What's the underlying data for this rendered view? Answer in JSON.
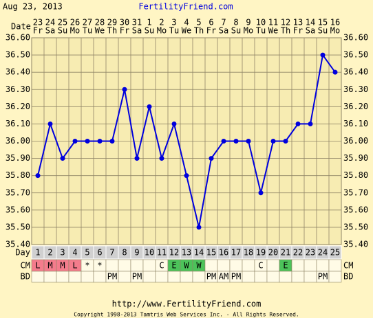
{
  "header": {
    "date": "Aug 23, 2013",
    "site": "FertilityFriend.com"
  },
  "chart_data": {
    "type": "line",
    "x_label": "Date",
    "day_label": "Day",
    "dates": [
      23,
      24,
      25,
      26,
      27,
      28,
      29,
      30,
      31,
      1,
      2,
      3,
      4,
      5,
      6,
      7,
      8,
      9,
      10,
      11,
      12,
      13,
      14,
      15,
      16
    ],
    "weekdays": [
      "Fr",
      "Sa",
      "Su",
      "Mo",
      "Tu",
      "We",
      "Th",
      "Fr",
      "Sa",
      "Su",
      "Mo",
      "Tu",
      "We",
      "Th",
      "Fr",
      "Sa",
      "Su",
      "Mo",
      "Tu",
      "We",
      "Th",
      "Fr",
      "Sa",
      "Su",
      "Mo"
    ],
    "x": [
      1,
      2,
      3,
      4,
      5,
      6,
      7,
      8,
      9,
      10,
      11,
      12,
      13,
      14,
      15,
      16,
      17,
      18,
      19,
      20,
      21,
      22,
      23,
      24,
      25
    ],
    "xlim": [
      0.5,
      25.5
    ],
    "series": [
      {
        "color": "#0000dd",
        "values": [
          35.8,
          36.1,
          35.9,
          36.0,
          36.0,
          36.0,
          36.0,
          36.3,
          35.9,
          36.2,
          35.9,
          36.1,
          35.8,
          35.5,
          35.9,
          36.0,
          36.0,
          36.0,
          35.7,
          36.0,
          36.0,
          36.1,
          36.1,
          36.5,
          36.4
        ]
      }
    ],
    "ylim": [
      35.4,
      36.6
    ],
    "yticks": [
      {
        "value": 35.4,
        "label": "35.40"
      },
      {
        "value": 35.5,
        "label": "35.50"
      },
      {
        "value": 35.6,
        "label": "35.60"
      },
      {
        "value": 35.7,
        "label": "35.70"
      },
      {
        "value": 35.8,
        "label": "35.80"
      },
      {
        "value": 35.9,
        "label": "35.90"
      },
      {
        "value": 36.0,
        "label": "36.00"
      },
      {
        "value": 36.1,
        "label": "36.10"
      },
      {
        "value": 36.2,
        "label": "36.20"
      },
      {
        "value": 36.3,
        "label": "36.30"
      },
      {
        "value": 36.4,
        "label": "36.40"
      },
      {
        "value": 36.5,
        "label": "36.50"
      },
      {
        "value": 36.6,
        "label": "36.60"
      }
    ],
    "grid": true,
    "cm": {
      "label": "CM",
      "values": [
        "L",
        "M",
        "M",
        "L",
        "*",
        "*",
        null,
        null,
        null,
        null,
        "C",
        "E",
        "W",
        "W",
        null,
        null,
        null,
        null,
        "C",
        null,
        "E",
        null,
        null,
        null,
        null
      ]
    },
    "bd": {
      "label": "BD",
      "values": [
        null,
        null,
        null,
        null,
        null,
        null,
        "PM",
        null,
        "PM",
        null,
        null,
        null,
        null,
        null,
        "PM",
        "AM",
        "PM",
        null,
        null,
        null,
        null,
        null,
        null,
        "PM",
        null
      ]
    },
    "cm_colors": {
      "L": "#f47c8c",
      "M": "#f47c8c",
      "E": "#4cc35a",
      "W": "#4cc35a"
    }
  },
  "footer": {
    "url": "http://www.FertilityFriend.com",
    "copyright": "Copyright 1998-2013 Tamtris Web Services Inc. - All Rights Reserved."
  }
}
